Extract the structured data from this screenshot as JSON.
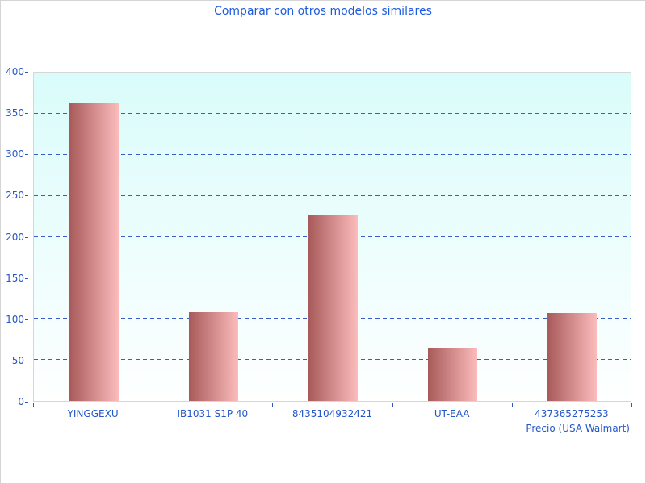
{
  "window": {
    "background": "#ffffff",
    "border_color": "#d4d4d4"
  },
  "chart_data": {
    "type": "bar",
    "title": "Comparar con otros modelos similares",
    "xlabel": "Precio (USA Walmart)",
    "ylabel": "",
    "categories": [
      "YINGGEXU",
      "IB1031 S1P 40",
      "8435104932421",
      "UT-EAA",
      "437365275253"
    ],
    "values": [
      363,
      108,
      227,
      65,
      107
    ],
    "ylim": [
      0,
      400
    ],
    "ytick_step": 50,
    "grid": "horizontal dashed lines at each 50 step",
    "legend": "none",
    "colors": {
      "title_text": "#1e5ae0",
      "axis_text": "#2257c8",
      "gridline": "#3a5cc8",
      "tick": "#2f55c8",
      "bar_gradient_left": "#a85a5a",
      "bar_gradient_right": "#fcbcbc",
      "plot_bg_top": "#d9fcfa",
      "plot_bg_bottom": "#feffff",
      "plot_border": "#d6d6d6"
    }
  }
}
